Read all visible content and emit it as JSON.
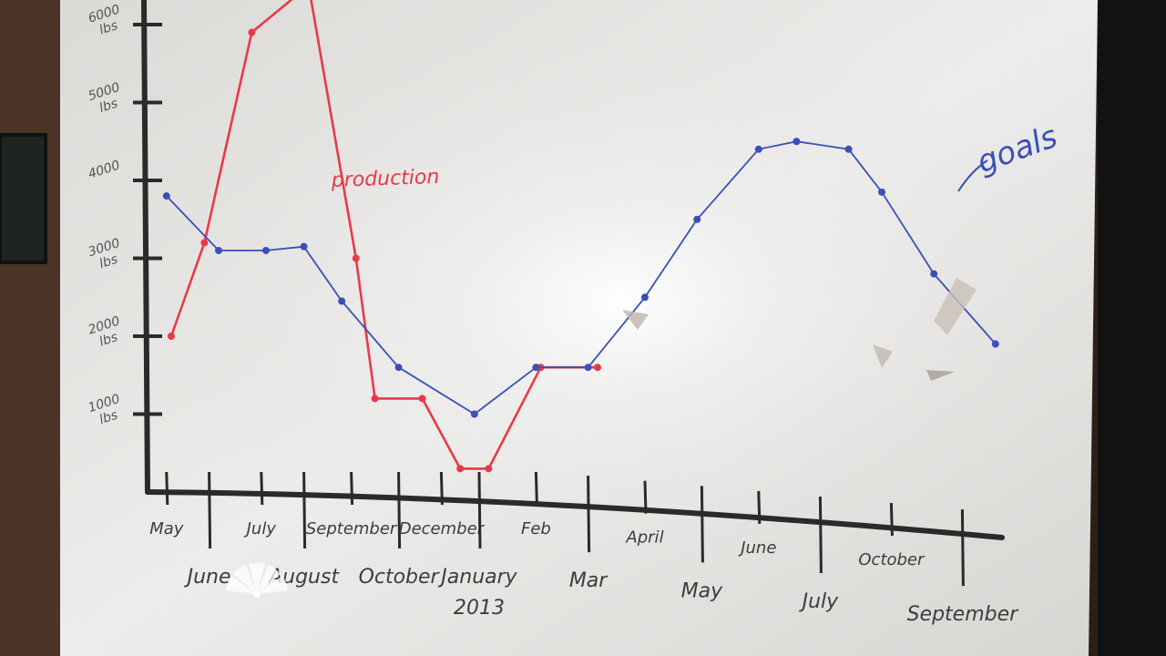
{
  "chart_data": {
    "type": "line",
    "y_ticks": [
      {
        "label": "1000 lbs",
        "value": 1000
      },
      {
        "label": "2000 lbs",
        "value": 2000
      },
      {
        "label": "3000 lbs",
        "value": 3000
      },
      {
        "label": "4000",
        "value": 4000
      },
      {
        "label": "5000 lbs",
        "value": 5000
      },
      {
        "label": "6000 lbs",
        "value": 6000
      }
    ],
    "ylim": [
      0,
      6000
    ],
    "x_ticks": [
      {
        "label": "May",
        "t": 0.4
      },
      {
        "label": "June",
        "t": 1.3
      },
      {
        "label": "July",
        "t": 2.4
      },
      {
        "label": "August",
        "t": 3.3
      },
      {
        "label": "September",
        "t": 4.3
      },
      {
        "label": "October",
        "t": 5.3
      },
      {
        "label": "December",
        "t": 6.2
      },
      {
        "label": "January 2013",
        "t": 7.0
      },
      {
        "label": "Feb",
        "t": 8.2
      },
      {
        "label": "Mar",
        "t": 9.3
      },
      {
        "label": "April",
        "t": 10.5
      },
      {
        "label": "May",
        "t": 11.7
      },
      {
        "label": "June",
        "t": 12.9
      },
      {
        "label": "July",
        "t": 14.2
      },
      {
        "label": "October",
        "t": 15.7
      },
      {
        "label": "September",
        "t": 17.2
      }
    ],
    "series": [
      {
        "name": "production",
        "color": "#e8394a",
        "points": [
          [
            0.5,
            2000
          ],
          [
            1.2,
            3200
          ],
          [
            2.2,
            5900
          ],
          [
            3.4,
            6500
          ],
          [
            4.4,
            3000
          ],
          [
            4.8,
            1200
          ],
          [
            5.8,
            1200
          ],
          [
            6.6,
            300
          ],
          [
            7.2,
            300
          ],
          [
            8.3,
            1600
          ],
          [
            9.5,
            1600
          ]
        ]
      },
      {
        "name": "goals",
        "color": "#3b4fb8",
        "points": [
          [
            0.4,
            3800
          ],
          [
            1.5,
            3100
          ],
          [
            2.5,
            3100
          ],
          [
            3.3,
            3150
          ],
          [
            4.1,
            2450
          ],
          [
            5.3,
            1600
          ],
          [
            6.9,
            1000
          ],
          [
            8.2,
            1600
          ],
          [
            9.3,
            1600
          ],
          [
            10.5,
            2500
          ],
          [
            11.6,
            3500
          ],
          [
            12.9,
            4400
          ],
          [
            13.7,
            4500
          ],
          [
            14.8,
            4400
          ],
          [
            15.5,
            3850
          ],
          [
            16.6,
            2800
          ],
          [
            17.9,
            1900
          ]
        ]
      }
    ]
  }
}
